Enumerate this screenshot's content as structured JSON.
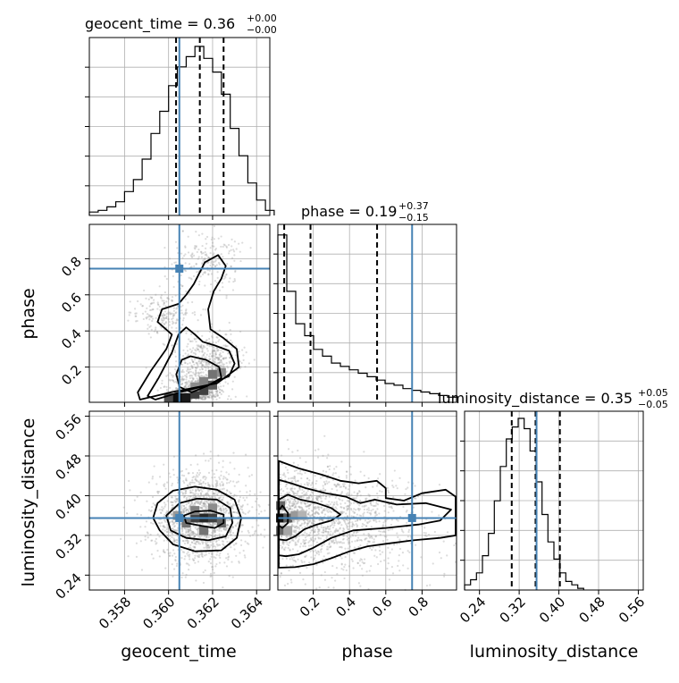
{
  "chart_data": {
    "type": "corner",
    "parameters": [
      "geocent_time",
      "phase",
      "luminosity_distance"
    ],
    "axis_labels": [
      "geocent_time",
      "phase",
      "luminosity_distance"
    ],
    "titles": [
      {
        "main": "geocent_time = 0.36",
        "sup": "+0.00",
        "sub": "−0.00"
      },
      {
        "main": "phase = 0.19",
        "sup": "+0.37",
        "sub": "−0.15"
      },
      {
        "main": "luminosity_distance = 0.35",
        "sup": "+0.05",
        "sub": "−0.05"
      }
    ],
    "truths": [
      0.36049,
      0.745,
      0.355
    ],
    "ranges": [
      [
        0.3564,
        0.3646
      ],
      [
        0.005,
        0.99
      ],
      [
        0.21,
        0.57
      ]
    ],
    "quantiles": [
      [
        0.36034,
        0.36142,
        0.3625
      ],
      [
        0.04,
        0.185,
        0.552
      ],
      [
        0.305,
        0.353,
        0.402
      ]
    ],
    "ticks": [
      {
        "values": [
          0.358,
          0.36,
          0.362,
          0.364
        ],
        "labels": [
          "0.358",
          "0.360",
          "0.362",
          "0.364"
        ]
      },
      {
        "values": [
          0.2,
          0.4,
          0.6,
          0.8
        ],
        "labels": [
          "0.2",
          "0.4",
          "0.6",
          "0.8"
        ]
      },
      {
        "values": [
          0.24,
          0.32,
          0.4,
          0.48,
          0.56
        ],
        "labels": [
          "0.24",
          "0.32",
          "0.40",
          "0.48",
          "0.56"
        ]
      }
    ],
    "histograms": [
      {
        "edges_start": 0.3564,
        "edges_step": 0.0004,
        "counts": [
          0.02,
          0.03,
          0.05,
          0.08,
          0.14,
          0.21,
          0.33,
          0.48,
          0.61,
          0.76,
          0.87,
          0.93,
          0.99,
          0.92,
          0.84,
          0.71,
          0.51,
          0.35,
          0.19,
          0.09,
          0.03
        ]
      },
      {
        "edges_start": 0.005,
        "edges_step": 0.04925,
        "counts": [
          0.98,
          0.65,
          0.46,
          0.39,
          0.31,
          0.27,
          0.23,
          0.21,
          0.19,
          0.17,
          0.15,
          0.13,
          0.11,
          0.1,
          0.08,
          0.07,
          0.06,
          0.05,
          0.04,
          0.03
        ]
      },
      {
        "edges_start": 0.21,
        "edges_step": 0.012,
        "counts": [
          0.03,
          0.06,
          0.1,
          0.2,
          0.33,
          0.52,
          0.72,
          0.88,
          0.95,
          1.0,
          0.94,
          0.81,
          0.63,
          0.44,
          0.28,
          0.18,
          0.1,
          0.05,
          0.03,
          0.01
        ]
      }
    ],
    "contours": {
      "phase_vs_geocent_time": [
        [
          [
            0.36105,
            0.06
          ],
          [
            0.36175,
            0.095
          ],
          [
            0.3624,
            0.14
          ],
          [
            0.3623,
            0.2
          ],
          [
            0.3617,
            0.24
          ],
          [
            0.361,
            0.26
          ],
          [
            0.3606,
            0.24
          ],
          [
            0.36035,
            0.16
          ],
          [
            0.3605,
            0.09
          ]
        ],
        [
          [
            0.3594,
            0.02
          ],
          [
            0.3605,
            0.06
          ],
          [
            0.3618,
            0.1
          ],
          [
            0.36275,
            0.15
          ],
          [
            0.363,
            0.22
          ],
          [
            0.36275,
            0.29
          ],
          [
            0.3621,
            0.32
          ],
          [
            0.36155,
            0.34
          ],
          [
            0.3612,
            0.38
          ],
          [
            0.3608,
            0.42
          ],
          [
            0.36045,
            0.38
          ],
          [
            0.36015,
            0.28
          ],
          [
            0.35955,
            0.14
          ],
          [
            0.35905,
            0.04
          ]
        ],
        [
          [
            0.3587,
            0.02
          ],
          [
            0.3601,
            0.06
          ],
          [
            0.3622,
            0.11
          ],
          [
            0.3632,
            0.2
          ],
          [
            0.3631,
            0.3
          ],
          [
            0.3625,
            0.36
          ],
          [
            0.3619,
            0.41
          ],
          [
            0.3618,
            0.52
          ],
          [
            0.36205,
            0.62
          ],
          [
            0.3624,
            0.69
          ],
          [
            0.3626,
            0.76
          ],
          [
            0.36225,
            0.82
          ],
          [
            0.36165,
            0.78
          ],
          [
            0.36115,
            0.66
          ],
          [
            0.3608,
            0.6
          ],
          [
            0.36045,
            0.55
          ],
          [
            0.3597,
            0.52
          ],
          [
            0.3595,
            0.45
          ],
          [
            0.36015,
            0.38
          ],
          [
            0.3599,
            0.3
          ],
          [
            0.3592,
            0.18
          ],
          [
            0.3586,
            0.06
          ]
        ]
      ],
      "distance_vs_geocent_time": [
        [
          [
            0.3608,
            0.345
          ],
          [
            0.3614,
            0.34
          ],
          [
            0.3621,
            0.335
          ],
          [
            0.3625,
            0.345
          ],
          [
            0.3625,
            0.362
          ],
          [
            0.3619,
            0.37
          ],
          [
            0.3612,
            0.368
          ],
          [
            0.3607,
            0.36
          ]
        ],
        [
          [
            0.3601,
            0.33
          ],
          [
            0.3608,
            0.315
          ],
          [
            0.3618,
            0.31
          ],
          [
            0.3626,
            0.318
          ],
          [
            0.3629,
            0.345
          ],
          [
            0.3628,
            0.375
          ],
          [
            0.3622,
            0.392
          ],
          [
            0.3613,
            0.394
          ],
          [
            0.3605,
            0.385
          ],
          [
            0.3599,
            0.36
          ]
        ],
        [
          [
            0.3596,
            0.33
          ],
          [
            0.3602,
            0.302
          ],
          [
            0.3612,
            0.288
          ],
          [
            0.3624,
            0.29
          ],
          [
            0.3631,
            0.315
          ],
          [
            0.3633,
            0.355
          ],
          [
            0.363,
            0.392
          ],
          [
            0.3622,
            0.412
          ],
          [
            0.3612,
            0.418
          ],
          [
            0.3602,
            0.41
          ],
          [
            0.3595,
            0.385
          ],
          [
            0.3593,
            0.355
          ]
        ]
      ],
      "distance_vs_phase": [
        [
          [
            0.01,
            0.37
          ],
          [
            0.03,
            0.38
          ],
          [
            0.06,
            0.365
          ],
          [
            0.06,
            0.345
          ],
          [
            0.03,
            0.335
          ],
          [
            0.01,
            0.34
          ]
        ],
        [
          [
            0.01,
            0.392
          ],
          [
            0.06,
            0.402
          ],
          [
            0.13,
            0.392
          ],
          [
            0.22,
            0.385
          ],
          [
            0.3,
            0.375
          ],
          [
            0.35,
            0.362
          ],
          [
            0.3,
            0.35
          ],
          [
            0.22,
            0.342
          ],
          [
            0.15,
            0.332
          ],
          [
            0.1,
            0.318
          ],
          [
            0.05,
            0.31
          ],
          [
            0.01,
            0.312
          ]
        ],
        [
          [
            0.01,
            0.432
          ],
          [
            0.08,
            0.425
          ],
          [
            0.16,
            0.415
          ],
          [
            0.27,
            0.405
          ],
          [
            0.38,
            0.398
          ],
          [
            0.46,
            0.385
          ],
          [
            0.54,
            0.392
          ],
          [
            0.66,
            0.382
          ],
          [
            0.82,
            0.385
          ],
          [
            0.96,
            0.372
          ],
          [
            0.9,
            0.35
          ],
          [
            0.78,
            0.342
          ],
          [
            0.6,
            0.335
          ],
          [
            0.42,
            0.33
          ],
          [
            0.3,
            0.315
          ],
          [
            0.2,
            0.295
          ],
          [
            0.12,
            0.282
          ],
          [
            0.05,
            0.278
          ],
          [
            0.01,
            0.28
          ]
        ],
        [
          [
            0.01,
            0.47
          ],
          [
            0.12,
            0.455
          ],
          [
            0.25,
            0.442
          ],
          [
            0.35,
            0.43
          ],
          [
            0.45,
            0.425
          ],
          [
            0.55,
            0.43
          ],
          [
            0.6,
            0.415
          ],
          [
            0.6,
            0.395
          ],
          [
            0.7,
            0.39
          ],
          [
            0.8,
            0.405
          ],
          [
            0.93,
            0.412
          ],
          [
            0.985,
            0.398
          ],
          [
            0.985,
            0.32
          ],
          [
            0.9,
            0.315
          ],
          [
            0.75,
            0.31
          ],
          [
            0.6,
            0.303
          ],
          [
            0.5,
            0.298
          ],
          [
            0.4,
            0.288
          ],
          [
            0.3,
            0.274
          ],
          [
            0.2,
            0.262
          ],
          [
            0.1,
            0.256
          ],
          [
            0.01,
            0.255
          ]
        ]
      ]
    },
    "density_2d": {
      "phase_vs_geocent_time": [
        {
          "x": 0.3604,
          "y": 0.03,
          "level": 0.95
        },
        {
          "x": 0.3608,
          "y": 0.03,
          "level": 0.9
        },
        {
          "x": 0.3612,
          "y": 0.05,
          "level": 0.75
        },
        {
          "x": 0.36,
          "y": 0.03,
          "level": 0.7
        },
        {
          "x": 0.3616,
          "y": 0.07,
          "level": 0.75
        },
        {
          "x": 0.3616,
          "y": 0.12,
          "level": 0.5
        },
        {
          "x": 0.362,
          "y": 0.1,
          "level": 0.65
        },
        {
          "x": 0.362,
          "y": 0.16,
          "level": 0.55
        },
        {
          "x": 0.3624,
          "y": 0.17,
          "level": 0.45
        },
        {
          "x": 0.3612,
          "y": 0.09,
          "level": 0.45
        }
      ],
      "distance_vs_geocent_time": [
        {
          "x": 0.3616,
          "y": 0.355,
          "level": 0.85
        },
        {
          "x": 0.3612,
          "y": 0.355,
          "level": 0.75
        },
        {
          "x": 0.362,
          "y": 0.355,
          "level": 0.75
        },
        {
          "x": 0.3624,
          "y": 0.345,
          "level": 0.6
        },
        {
          "x": 0.3608,
          "y": 0.345,
          "level": 0.55
        },
        {
          "x": 0.3616,
          "y": 0.33,
          "level": 0.55
        },
        {
          "x": 0.3612,
          "y": 0.37,
          "level": 0.5
        },
        {
          "x": 0.3604,
          "y": 0.36,
          "level": 0.4
        },
        {
          "x": 0.362,
          "y": 0.375,
          "level": 0.45
        }
      ],
      "distance_vs_phase": [
        {
          "x": 0.02,
          "y": 0.355,
          "level": 0.95
        },
        {
          "x": 0.06,
          "y": 0.355,
          "level": 0.65
        },
        {
          "x": 0.02,
          "y": 0.33,
          "level": 0.6
        },
        {
          "x": 0.02,
          "y": 0.38,
          "level": 0.6
        },
        {
          "x": 0.1,
          "y": 0.36,
          "level": 0.4
        },
        {
          "x": 0.14,
          "y": 0.36,
          "level": 0.3
        },
        {
          "x": 0.06,
          "y": 0.33,
          "level": 0.35
        }
      ]
    }
  }
}
